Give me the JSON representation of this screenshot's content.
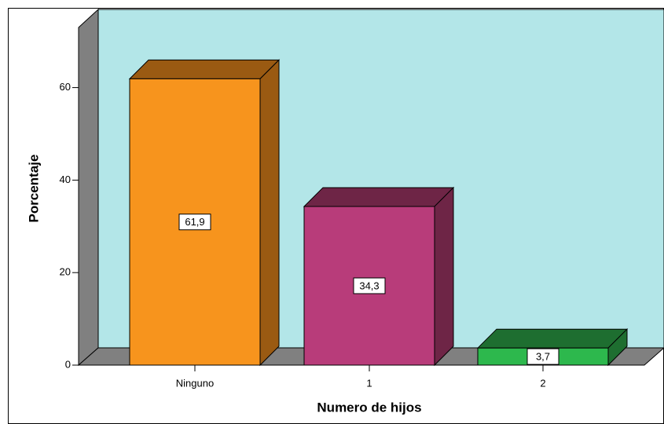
{
  "chart_data": {
    "type": "bar3d",
    "categories": [
      "Ninguno",
      "1",
      "2"
    ],
    "values": [
      61.9,
      34.3,
      3.7
    ],
    "value_labels": [
      "61,9",
      "34,3",
      "3,7"
    ],
    "colors": [
      "#f7941d",
      "#b83c7a",
      "#2db84d"
    ],
    "side_colors": [
      "#9a5a12",
      "#6e2546",
      "#1e6e30"
    ],
    "x_label": "Numero de hijos",
    "y_label": "Porcentaje",
    "ylim": [
      0,
      73
    ],
    "yticks": [
      0,
      20,
      40,
      60
    ]
  }
}
